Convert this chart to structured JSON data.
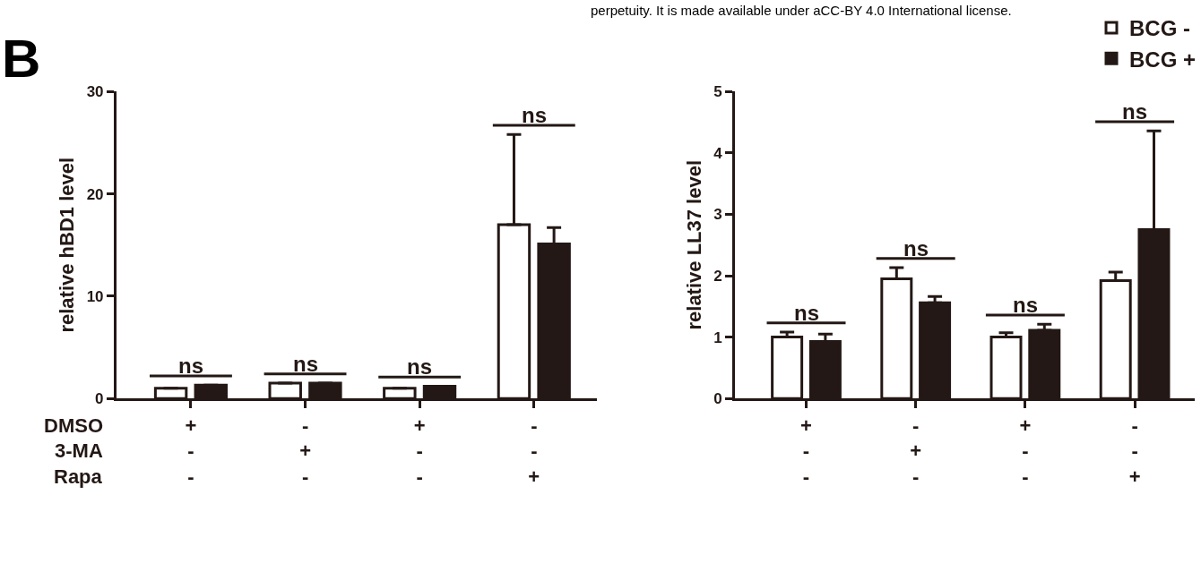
{
  "chart_data": [
    {
      "type": "bar",
      "ylabel": "relative hBD1 level",
      "categories": [
        "+\n-\n-",
        "-\n+\n-",
        "+\n-\n-",
        "-\n-\n+"
      ],
      "series": [
        {
          "color": "#ffffff",
          "values": [
            1.0,
            1.5,
            1.0,
            17.0
          ],
          "errors": [
            null,
            null,
            null,
            [
              17.0,
              25.8
            ]
          ]
        },
        {
          "color": "#231815",
          "values": [
            1.3,
            1.5,
            1.2,
            15.1
          ],
          "errors": [
            null,
            null,
            null,
            [
              15.1,
              16.7
            ]
          ]
        }
      ],
      "ylim": [
        0,
        30
      ],
      "yticks": [
        0,
        10,
        20,
        30
      ],
      "annotations": [
        "perpetuity. It is made available under aCC-BY 4.0 International license.",
        "B",
        "DMSO",
        "3-MA",
        "Rapa",
        "ns",
        "ns",
        "ns",
        "ns"
      ]
    },
    {
      "type": "bar",
      "ylabel": "relative LL37 level",
      "categories": [
        "+\n-\n-",
        "-\n+\n-",
        "+\n-\n-",
        "-\n-\n+"
      ],
      "series": [
        {
          "name": "BCG -",
          "color": "#ffffff",
          "values": [
            1.0,
            1.95,
            1.0,
            1.92
          ],
          "errors": [
            [
              1.0,
              1.08
            ],
            [
              1.95,
              2.13
            ],
            [
              1.0,
              1.07
            ],
            [
              1.92,
              2.06
            ]
          ]
        },
        {
          "name": "BCG +",
          "color": "#231815",
          "values": [
            0.93,
            1.56,
            1.11,
            2.75
          ],
          "errors": [
            [
              0.93,
              1.05
            ],
            [
              1.56,
              1.66
            ],
            [
              1.11,
              1.21
            ],
            [
              2.75,
              4.36
            ]
          ]
        }
      ],
      "ylim": [
        0,
        5
      ],
      "yticks": [
        0,
        1,
        2,
        3,
        4,
        5
      ],
      "legend": "top right",
      "annotations": [
        "ns",
        "ns",
        "ns",
        "ns"
      ]
    }
  ]
}
